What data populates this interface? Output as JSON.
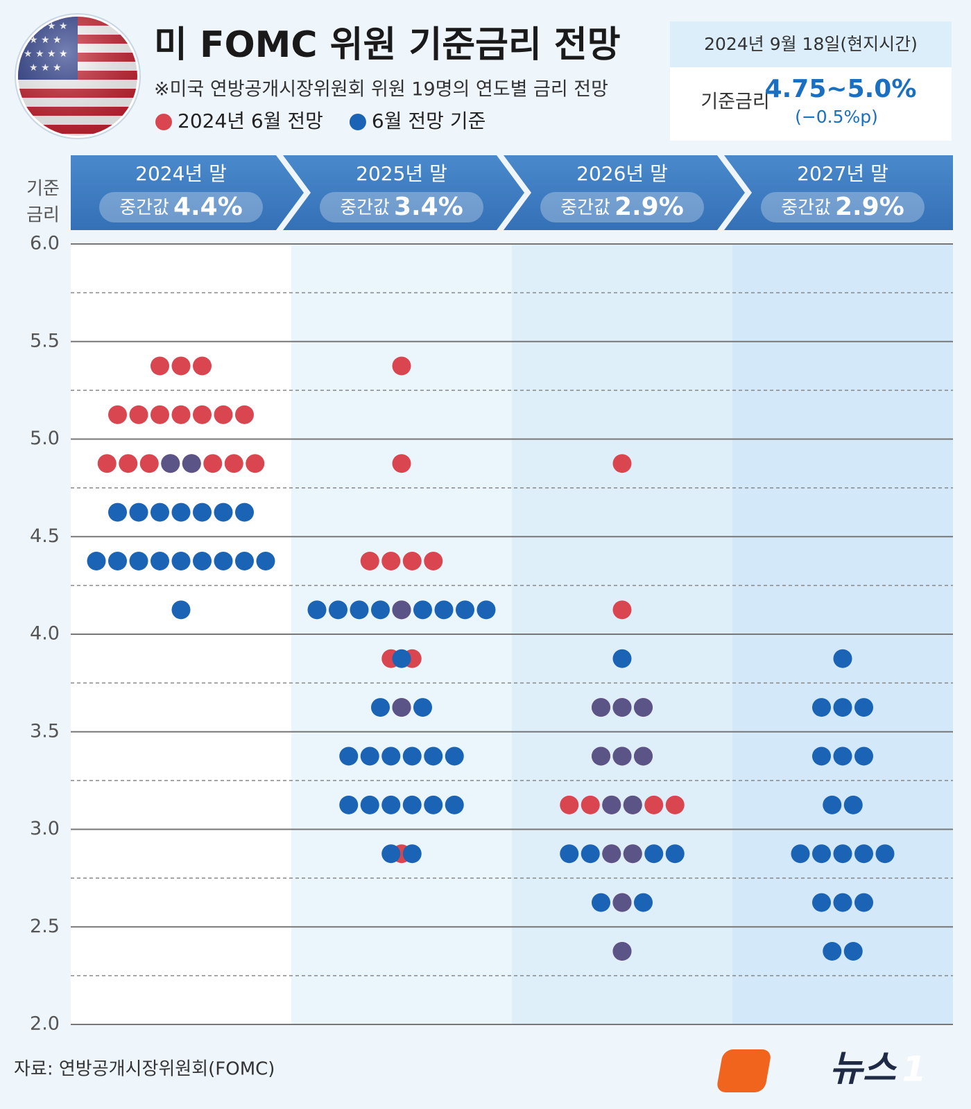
{
  "chart_data": {
    "type": "dotplot",
    "title": "미 FOMC 위원 기준금리 전망",
    "subtitle": "※미국 연방공개시장위원회 위원 19명의 연도별 금리 전망",
    "info_box": {
      "date": "2024년 9월 18일(현지시간)",
      "label": "기준금리",
      "rate": "4.75~5.0%",
      "change": "(−0.5%p)"
    },
    "ylabel": [
      "기준",
      "금리"
    ],
    "categories": [
      "2024년 말",
      "2025년 말",
      "2026년 말",
      "2027년 말"
    ],
    "median_label": "중간값",
    "medians": [
      "4.4%",
      "3.4%",
      "2.9%",
      "2.9%"
    ],
    "series": [
      {
        "name": "2024년 6월 전망",
        "color": "#d9464f",
        "values": [
          [
            5.375,
            5.375,
            5.375,
            5.125,
            5.125,
            5.125,
            5.125,
            5.125,
            5.125,
            5.125,
            4.875,
            4.875,
            4.875,
            4.875,
            4.875,
            4.875,
            4.875,
            4.875
          ],
          [
            5.375,
            4.875,
            4.375,
            4.375,
            4.375,
            4.375,
            4.125,
            3.875,
            3.875,
            3.625,
            2.875
          ],
          [
            4.875,
            4.125,
            3.625,
            3.625,
            3.625,
            3.375,
            3.375,
            3.375,
            3.125,
            3.125,
            3.125,
            3.125,
            3.125,
            3.125,
            2.875,
            2.875,
            2.625,
            2.375
          ],
          []
        ]
      },
      {
        "name": "6월 전망 기준",
        "color": "#1a63b5",
        "values": [
          [
            4.875,
            4.875,
            4.625,
            4.625,
            4.625,
            4.625,
            4.625,
            4.625,
            4.625,
            4.375,
            4.375,
            4.375,
            4.375,
            4.375,
            4.375,
            4.375,
            4.375,
            4.375,
            4.125
          ],
          [
            4.125,
            4.125,
            4.125,
            4.125,
            4.125,
            4.125,
            4.125,
            4.125,
            4.125,
            3.875,
            3.625,
            3.625,
            3.625,
            3.375,
            3.375,
            3.375,
            3.375,
            3.375,
            3.375,
            3.125,
            3.125,
            3.125,
            3.125,
            3.125,
            3.125,
            2.875,
            2.875
          ],
          [
            3.875,
            3.625,
            3.625,
            3.625,
            3.375,
            3.375,
            3.375,
            3.125,
            3.125,
            2.875,
            2.875,
            2.875,
            2.875,
            2.875,
            2.875,
            2.625,
            2.625,
            2.625,
            2.375
          ],
          [
            3.875,
            3.625,
            3.625,
            3.625,
            3.375,
            3.375,
            3.375,
            3.125,
            3.125,
            2.875,
            2.875,
            2.875,
            2.875,
            2.875,
            2.625,
            2.625,
            2.625,
            2.375,
            2.375
          ]
        ]
      }
    ],
    "overlap_color": "#5a5487",
    "ylim": [
      2.0,
      6.0
    ],
    "yticks": [
      {
        "value": 6,
        "label": "6.0"
      },
      {
        "value": 5.5,
        "label": "5.5"
      },
      {
        "value": 5,
        "label": "5.0"
      },
      {
        "value": 4.5,
        "label": "4.5"
      },
      {
        "value": 4,
        "label": "4.0"
      },
      {
        "value": 3.5,
        "label": "3.5"
      },
      {
        "value": 3,
        "label": "3.0"
      },
      {
        "value": 2.5,
        "label": "2.5"
      },
      {
        "value": 2,
        "label": "2.0"
      }
    ],
    "minor_yticks": [
      5.75,
      5.25,
      4.75,
      4.25,
      3.75,
      3.25,
      2.75,
      2.25
    ],
    "grid": true,
    "source": "자료: 연방공개시장위원회(FOMC)",
    "logo": {
      "text": "뉴스",
      "mark": "1"
    }
  }
}
